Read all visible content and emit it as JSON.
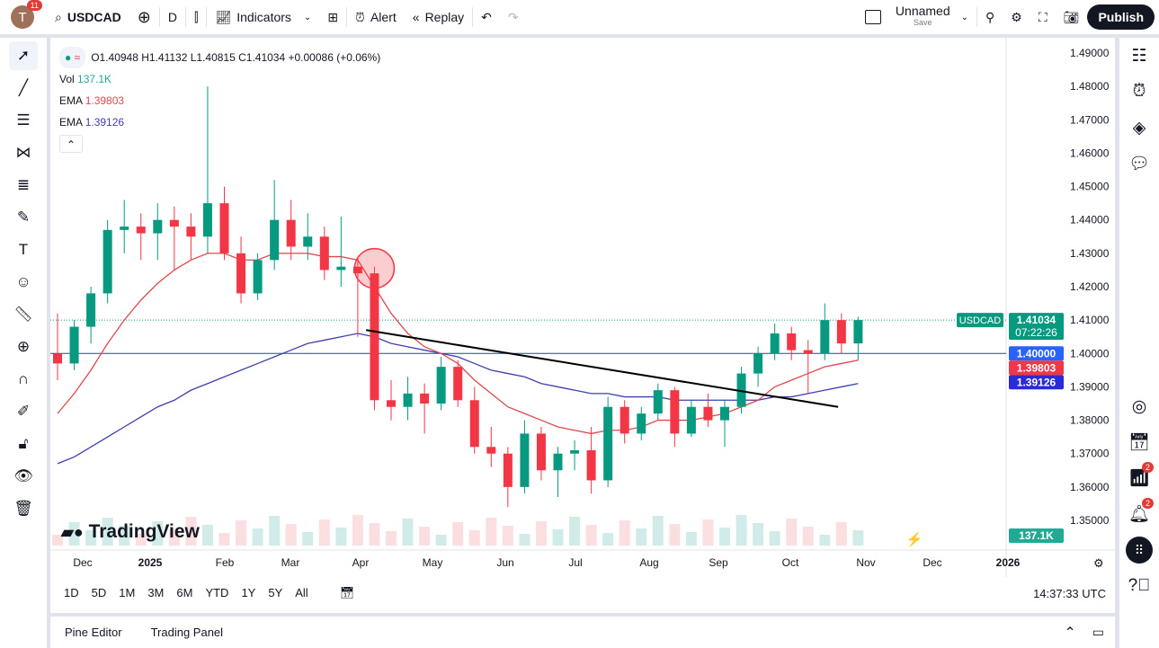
{
  "toolbar": {
    "avatar_letter": "T",
    "notifications": "11",
    "symbol": "USDCAD",
    "interval": "D",
    "indicators": "Indicators",
    "alert": "Alert",
    "replay": "Replay",
    "layout_name": "Unnamed",
    "layout_save": "Save",
    "publish": "Publish"
  },
  "legend": {
    "ohlc": "O1.40948 H1.41132 L1.40815 C1.41034 +0.00086 (+0.06%)",
    "vol_label": "Vol",
    "vol_value": "137.1K",
    "ema1_label": "EMA",
    "ema1_value": "1.39803",
    "ema2_label": "EMA",
    "ema2_value": "1.39126"
  },
  "colors": {
    "up": "#089981",
    "down": "#f23645",
    "ema_fast": "#e0474c",
    "ema_slow": "#3f3fb0",
    "hline": "#2a4a6b",
    "accent": "#2962ff"
  },
  "price_labels": {
    "symbol": "USDCAD",
    "last": "1.41034",
    "countdown": "07:22:26",
    "hline": "1.40000",
    "ema_fast": "1.39803",
    "ema_slow": "1.39126",
    "volume": "137.1K"
  },
  "logo": "TradingView",
  "ranges": [
    "1D",
    "5D",
    "1M",
    "3M",
    "6M",
    "YTD",
    "1Y",
    "5Y",
    "All"
  ],
  "clock": "14:37:33 UTC",
  "bottom_tabs": [
    "Pine Editor",
    "Trading Panel"
  ],
  "right_badges": [
    "2",
    "2"
  ],
  "chart_data": {
    "type": "candlestick",
    "ylim": [
      1.35,
      1.49
    ],
    "yticks": [
      "1.49000",
      "1.48000",
      "1.47000",
      "1.46000",
      "1.45000",
      "1.44000",
      "1.43000",
      "1.42000",
      "1.41000",
      "1.40000",
      "1.39000",
      "1.38000",
      "1.37000",
      "1.36000",
      "1.35000"
    ],
    "xticks": [
      "Dec",
      "2025",
      "Feb",
      "Mar",
      "Apr",
      "May",
      "Jun",
      "Jul",
      "Aug",
      "Sep",
      "Oct",
      "Nov",
      "Dec",
      "2026"
    ],
    "weekly_ohlc": [
      [
        1.4,
        1.412,
        1.392,
        1.397
      ],
      [
        1.397,
        1.41,
        1.395,
        1.408
      ],
      [
        1.408,
        1.42,
        1.403,
        1.418
      ],
      [
        1.418,
        1.44,
        1.415,
        1.437
      ],
      [
        1.437,
        1.446,
        1.43,
        1.438
      ],
      [
        1.438,
        1.442,
        1.428,
        1.436
      ],
      [
        1.436,
        1.445,
        1.428,
        1.44
      ],
      [
        1.44,
        1.444,
        1.425,
        1.438
      ],
      [
        1.438,
        1.442,
        1.428,
        1.435
      ],
      [
        1.435,
        1.48,
        1.43,
        1.445
      ],
      [
        1.445,
        1.45,
        1.428,
        1.43
      ],
      [
        1.43,
        1.435,
        1.415,
        1.418
      ],
      [
        1.418,
        1.43,
        1.416,
        1.428
      ],
      [
        1.428,
        1.452,
        1.425,
        1.44
      ],
      [
        1.44,
        1.446,
        1.428,
        1.432
      ],
      [
        1.432,
        1.442,
        1.428,
        1.435
      ],
      [
        1.435,
        1.438,
        1.422,
        1.425
      ],
      [
        1.425,
        1.441,
        1.42,
        1.426
      ],
      [
        1.426,
        1.429,
        1.405,
        1.424
      ],
      [
        1.424,
        1.426,
        1.383,
        1.386
      ],
      [
        1.386,
        1.392,
        1.38,
        1.384
      ],
      [
        1.384,
        1.393,
        1.38,
        1.388
      ],
      [
        1.388,
        1.391,
        1.376,
        1.385
      ],
      [
        1.385,
        1.399,
        1.383,
        1.396
      ],
      [
        1.396,
        1.398,
        1.384,
        1.386
      ],
      [
        1.386,
        1.39,
        1.37,
        1.372
      ],
      [
        1.372,
        1.378,
        1.366,
        1.37
      ],
      [
        1.37,
        1.372,
        1.354,
        1.36
      ],
      [
        1.36,
        1.38,
        1.358,
        1.376
      ],
      [
        1.376,
        1.378,
        1.362,
        1.365
      ],
      [
        1.365,
        1.372,
        1.357,
        1.37
      ],
      [
        1.37,
        1.374,
        1.365,
        1.371
      ],
      [
        1.371,
        1.378,
        1.358,
        1.362
      ],
      [
        1.362,
        1.387,
        1.36,
        1.384
      ],
      [
        1.384,
        1.386,
        1.373,
        1.376
      ],
      [
        1.376,
        1.384,
        1.374,
        1.382
      ],
      [
        1.382,
        1.391,
        1.38,
        1.389
      ],
      [
        1.389,
        1.39,
        1.372,
        1.376
      ],
      [
        1.376,
        1.386,
        1.375,
        1.384
      ],
      [
        1.384,
        1.388,
        1.378,
        1.38
      ],
      [
        1.38,
        1.386,
        1.372,
        1.384
      ],
      [
        1.384,
        1.396,
        1.382,
        1.394
      ],
      [
        1.394,
        1.402,
        1.39,
        1.4
      ],
      [
        1.4,
        1.409,
        1.398,
        1.406
      ],
      [
        1.406,
        1.408,
        1.398,
        1.401
      ],
      [
        1.401,
        1.404,
        1.388,
        1.4
      ],
      [
        1.4,
        1.415,
        1.398,
        1.41
      ],
      [
        1.41,
        1.412,
        1.4,
        1.403
      ],
      [
        1.403,
        1.411,
        1.398,
        1.41
      ]
    ],
    "ema_fast": [
      1.382,
      1.388,
      1.395,
      1.403,
      1.41,
      1.416,
      1.421,
      1.425,
      1.428,
      1.43,
      1.43,
      1.428,
      1.428,
      1.43,
      1.43,
      1.43,
      1.429,
      1.429,
      1.428,
      1.42,
      1.412,
      1.406,
      1.402,
      1.4,
      1.397,
      1.392,
      1.388,
      1.384,
      1.382,
      1.38,
      1.378,
      1.377,
      1.376,
      1.377,
      1.377,
      1.378,
      1.38,
      1.38,
      1.38,
      1.381,
      1.382,
      1.384,
      1.386,
      1.39,
      1.392,
      1.394,
      1.396,
      1.397,
      1.398
    ],
    "ema_slow": [
      1.367,
      1.369,
      1.372,
      1.375,
      1.378,
      1.381,
      1.384,
      1.386,
      1.389,
      1.391,
      1.393,
      1.395,
      1.397,
      1.399,
      1.401,
      1.403,
      1.404,
      1.405,
      1.406,
      1.405,
      1.403,
      1.402,
      1.401,
      1.4,
      1.399,
      1.397,
      1.395,
      1.394,
      1.393,
      1.391,
      1.39,
      1.389,
      1.388,
      1.388,
      1.387,
      1.387,
      1.387,
      1.386,
      1.386,
      1.386,
      1.386,
      1.386,
      1.386,
      1.387,
      1.387,
      1.388,
      1.389,
      1.39,
      1.391
    ],
    "hline": 1.4,
    "trendline": [
      [
        18.5,
        1.407
      ],
      [
        46.8,
        1.384
      ]
    ],
    "circle_marker": [
      19,
      1.4255
    ]
  }
}
